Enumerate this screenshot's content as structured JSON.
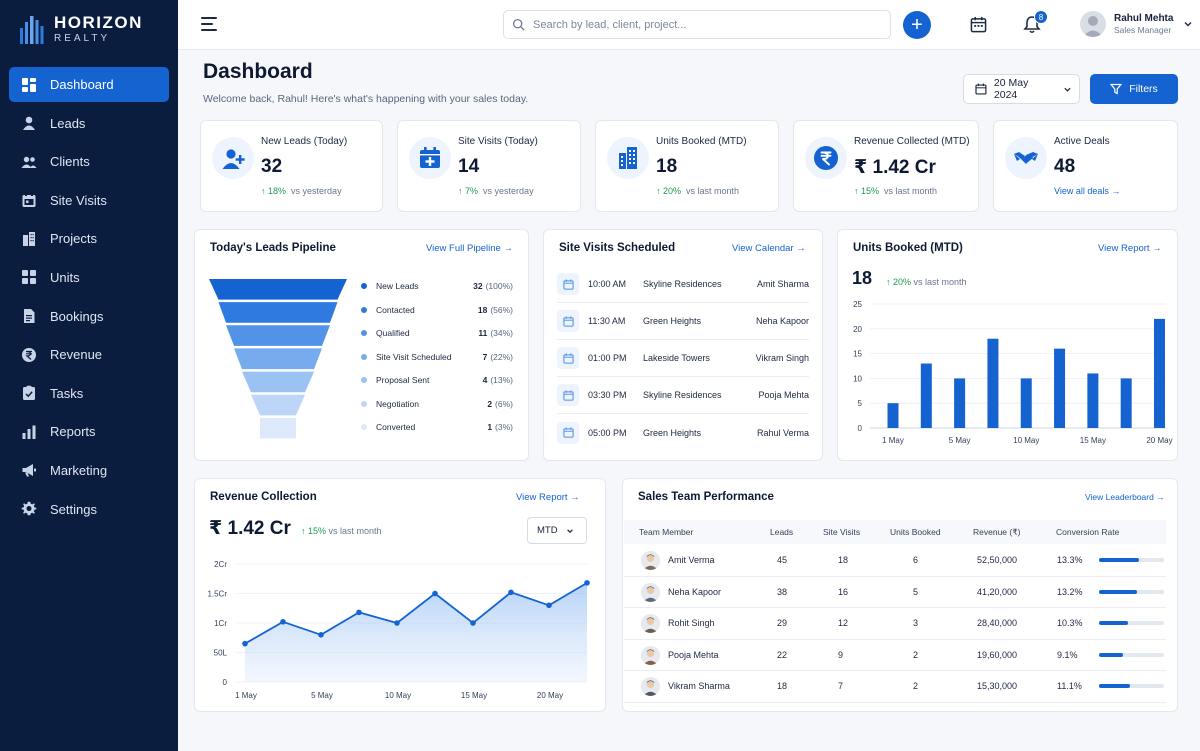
{
  "brand": {
    "name": "HORIZON",
    "sub": "REALTY"
  },
  "sidebar": {
    "items": [
      {
        "label": "Dashboard",
        "icon": "dashboard-icon",
        "active": true
      },
      {
        "label": "Leads",
        "icon": "user-icon"
      },
      {
        "label": "Clients",
        "icon": "users-icon"
      },
      {
        "label": "Site Visits",
        "icon": "calendar-icon"
      },
      {
        "label": "Projects",
        "icon": "building-icon"
      },
      {
        "label": "Units",
        "icon": "grid-icon"
      },
      {
        "label": "Bookings",
        "icon": "document-icon"
      },
      {
        "label": "Revenue",
        "icon": "rupee-icon"
      },
      {
        "label": "Tasks",
        "icon": "checklist-icon"
      },
      {
        "label": "Reports",
        "icon": "bar-chart-icon"
      },
      {
        "label": "Marketing",
        "icon": "megaphone-icon"
      },
      {
        "label": "Settings",
        "icon": "gear-icon"
      }
    ]
  },
  "topbar": {
    "search_placeholder": "Search by lead, client, project...",
    "notifications": "8",
    "user": {
      "name": "Rahul Mehta",
      "role": "Sales Manager"
    }
  },
  "header": {
    "title": "Dashboard",
    "subtitle": "Welcome back, Rahul! Here's what's happening with your sales today.",
    "date": "20 May 2024",
    "filters_label": "Filters"
  },
  "stats": [
    {
      "label": "New Leads (Today)",
      "value": "32",
      "change": "18%",
      "suffix": "vs yesterday"
    },
    {
      "label": "Site Visits (Today)",
      "value": "14",
      "change": "7%",
      "suffix": "vs yesterday"
    },
    {
      "label": "Units Booked (MTD)",
      "value": "18",
      "change": "20%",
      "suffix": "vs last month"
    },
    {
      "label": "Revenue Collected (MTD)",
      "value": "₹ 1.42 Cr",
      "change": "15%",
      "suffix": "vs last month"
    },
    {
      "label": "Active Deals",
      "value": "48",
      "link": "View all deals →"
    }
  ],
  "pipeline": {
    "title": "Today's Leads Pipeline",
    "link": "View Full Pipeline →",
    "stages": [
      {
        "name": "New Leads",
        "count": "32",
        "pct": "(100%)",
        "color": "#1463d1"
      },
      {
        "name": "Contacted",
        "count": "18",
        "pct": "(56%)",
        "color": "#2f7ae0"
      },
      {
        "name": "Qualified",
        "count": "11",
        "pct": "(34%)",
        "color": "#5293e8"
      },
      {
        "name": "Site Visit Scheduled",
        "count": "7",
        "pct": "(22%)",
        "color": "#76abee"
      },
      {
        "name": "Proposal Sent",
        "count": "4",
        "pct": "(13%)",
        "color": "#9ac2f3"
      },
      {
        "name": "Negotiation",
        "count": "2",
        "pct": "(6%)",
        "color": "#bdd6f7"
      },
      {
        "name": "Converted",
        "count": "1",
        "pct": "(3%)",
        "color": "#dde9fa"
      }
    ]
  },
  "visits": {
    "title": "Site Visits Scheduled",
    "link": "View Calendar →",
    "rows": [
      {
        "time": "10:00 AM",
        "project": "Skyline Residences",
        "person": "Amit Sharma"
      },
      {
        "time": "11:30 AM",
        "project": "Green Heights",
        "person": "Neha Kapoor"
      },
      {
        "time": "01:00 PM",
        "project": "Lakeside Towers",
        "person": "Vikram Singh"
      },
      {
        "time": "03:30 PM",
        "project": "Skyline Residences",
        "person": "Pooja Mehta"
      },
      {
        "time": "05:00 PM",
        "project": "Green Heights",
        "person": "Rahul Verma"
      }
    ]
  },
  "units_chart": {
    "title": "Units Booked (MTD)",
    "link": "View Report →",
    "value": "18",
    "change": "20%",
    "suffix": "vs last month"
  },
  "revenue_chart": {
    "title": "Revenue Collection",
    "link": "View Report →",
    "value": "₹ 1.42 Cr",
    "change": "15%",
    "suffix": "vs last month",
    "period": "MTD"
  },
  "chart_data": [
    {
      "type": "bar",
      "title": "Units Booked (MTD)",
      "xticks": [
        "1 May",
        "5 May",
        "10 May",
        "15 May",
        "20 May"
      ],
      "yticks": [
        "0",
        "5",
        "10",
        "15",
        "20",
        "25"
      ],
      "ylim": [
        0,
        25
      ],
      "values": [
        5,
        13,
        10,
        18,
        10,
        16,
        11,
        10,
        22
      ],
      "color": "#1463d1"
    },
    {
      "type": "area",
      "title": "Revenue Collection",
      "xticks": [
        "1 May",
        "5 May",
        "10 May",
        "15 May",
        "20 May"
      ],
      "yticks": [
        "0",
        "50L",
        "1Cr",
        "1.5Cr",
        "2Cr"
      ],
      "ylim": [
        0,
        2
      ],
      "values": [
        0.65,
        1.02,
        0.8,
        1.18,
        1.0,
        1.5,
        1.0,
        1.52,
        1.3,
        1.68
      ],
      "color": "#1463d1"
    }
  ],
  "team": {
    "title": "Sales Team Performance",
    "link": "View Leaderboard →",
    "columns": [
      "Team Member",
      "Leads",
      "Site Visits",
      "Units Booked",
      "Revenue (₹)",
      "Conversion Rate"
    ],
    "rows": [
      {
        "name": "Amit Verma",
        "leads": "45",
        "visits": "18",
        "units": "6",
        "revenue": "52,50,000",
        "rate": "13.3%",
        "bar": 0.62
      },
      {
        "name": "Neha Kapoor",
        "leads": "38",
        "visits": "16",
        "units": "5",
        "revenue": "41,20,000",
        "rate": "13.2%",
        "bar": 0.58
      },
      {
        "name": "Rohit Singh",
        "leads": "29",
        "visits": "12",
        "units": "3",
        "revenue": "28,40,000",
        "rate": "10.3%",
        "bar": 0.45
      },
      {
        "name": "Pooja Mehta",
        "leads": "22",
        "visits": "9",
        "units": "2",
        "revenue": "19,60,000",
        "rate": "9.1%",
        "bar": 0.37
      },
      {
        "name": "Vikram Sharma",
        "leads": "18",
        "visits": "7",
        "units": "2",
        "revenue": "15,30,000",
        "rate": "11.1%",
        "bar": 0.47
      }
    ]
  }
}
